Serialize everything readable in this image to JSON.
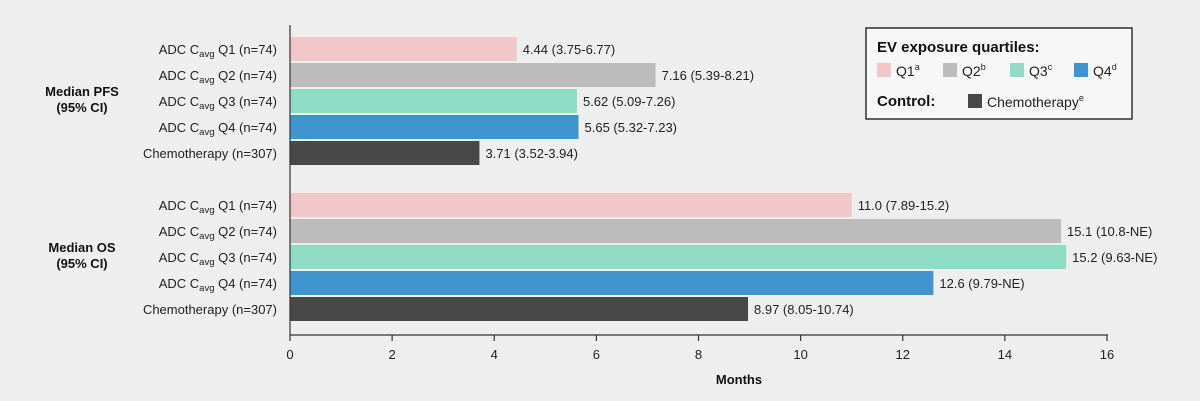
{
  "chart_data": {
    "type": "bar",
    "orientation": "horizontal",
    "xlabel": "Months",
    "xlim": [
      0,
      16
    ],
    "xticks": [
      0,
      2,
      4,
      6,
      8,
      10,
      12,
      14,
      16
    ],
    "grid": false,
    "legend_position": "top-right",
    "groups": [
      {
        "label_lines": [
          "Median PFS",
          "(95% CI)"
        ],
        "bars": [
          {
            "prefix": "ADC C",
            "sub": "avg",
            "suffix": " Q1 (n=74)",
            "value": 4.44,
            "ci_text": "4.44  (3.75-6.77)",
            "color": "#f2c7c9"
          },
          {
            "prefix": "ADC C",
            "sub": "avg",
            "suffix": " Q2 (n=74)",
            "value": 7.16,
            "ci_text": "7.16  (5.39-8.21)",
            "color": "#bcbcbc"
          },
          {
            "prefix": "ADC C",
            "sub": "avg",
            "suffix": " Q3 (n=74)",
            "value": 5.62,
            "ci_text": "5.62  (5.09-7.26)",
            "color": "#8fdcc4"
          },
          {
            "prefix": "ADC C",
            "sub": "avg",
            "suffix": " Q4 (n=74)",
            "value": 5.65,
            "ci_text": "5.65  (5.32-7.23)",
            "color": "#3f93cf"
          },
          {
            "prefix": "Chemotherapy (n=307)",
            "sub": "",
            "suffix": "",
            "value": 3.71,
            "ci_text": "3.71  (3.52-3.94)",
            "color": "#484848"
          }
        ]
      },
      {
        "label_lines": [
          "Median OS",
          "(95% CI)"
        ],
        "bars": [
          {
            "prefix": "ADC C",
            "sub": "avg",
            "suffix": " Q1 (n=74)",
            "value": 11.0,
            "ci_text": "11.0 (7.89-15.2)",
            "color": "#f2c7c9"
          },
          {
            "prefix": "ADC C",
            "sub": "avg",
            "suffix": " Q2 (n=74)",
            "value": 15.1,
            "ci_text": "15.1 (10.8-NE)",
            "color": "#bcbcbc"
          },
          {
            "prefix": "ADC C",
            "sub": "avg",
            "suffix": " Q3 (n=74)",
            "value": 15.2,
            "ci_text": "15.2 (9.63-NE)",
            "color": "#8fdcc4"
          },
          {
            "prefix": "ADC C",
            "sub": "avg",
            "suffix": " Q4 (n=74)",
            "value": 12.6,
            "ci_text": "12.6 (9.79-NE)",
            "color": "#3f93cf"
          },
          {
            "prefix": "Chemotherapy (n=307)",
            "sub": "",
            "suffix": "",
            "value": 8.97,
            "ci_text": "8.97 (8.05-10.74)",
            "color": "#484848"
          }
        ]
      }
    ],
    "legend": {
      "title": "EV exposure quartiles:",
      "quartiles": [
        {
          "label": "Q1",
          "sup": "a",
          "color": "#f2c7c9"
        },
        {
          "label": "Q2",
          "sup": "b",
          "color": "#bcbcbc"
        },
        {
          "label": "Q3",
          "sup": "c",
          "color": "#8fdcc4"
        },
        {
          "label": "Q4",
          "sup": "d",
          "color": "#3f93cf"
        }
      ],
      "control_title": "Control:",
      "control": {
        "label": "Chemotherapy",
        "sup": "e",
        "color": "#484848"
      }
    }
  }
}
